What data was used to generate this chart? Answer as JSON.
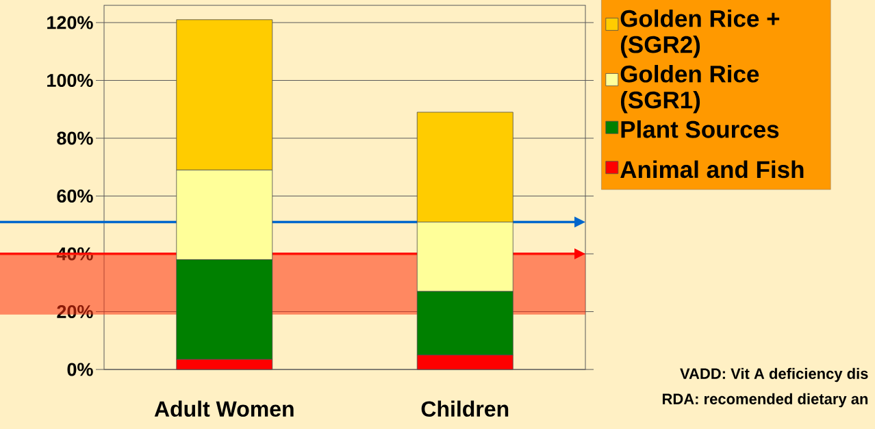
{
  "chart_data": {
    "type": "bar",
    "stacked": true,
    "categories": [
      "Adult Women",
      "Children"
    ],
    "series": [
      {
        "name": "Animal and Fish",
        "color": "#ff0000",
        "values": [
          3.5,
          5
        ]
      },
      {
        "name": "Plant Sources",
        "color": "#008000",
        "values": [
          34.5,
          22
        ]
      },
      {
        "name": "Golden Rice (SGR1)",
        "color": "#ffff99",
        "values": [
          31,
          24
        ]
      },
      {
        "name": "Golden Rice + (SGR2)",
        "color": "#ffcc00",
        "values": [
          52,
          38
        ]
      }
    ],
    "ylim": [
      0,
      126
    ],
    "yticks": [
      {
        "value": 0,
        "label": "0%"
      },
      {
        "value": 20,
        "label": "20%"
      },
      {
        "value": 40,
        "label": "40%"
      },
      {
        "value": 60,
        "label": "60%"
      },
      {
        "value": 80,
        "label": "80%"
      },
      {
        "value": 100,
        "label": "100%"
      },
      {
        "value": 120,
        "label": "120%"
      }
    ],
    "grid": "y",
    "legend": "right",
    "ref_lines": [
      {
        "axis": "y",
        "value": 51,
        "color": "#0066cc"
      },
      {
        "axis": "y",
        "value": 40,
        "color": "#ff0000"
      }
    ],
    "bands": [
      {
        "axis": "y",
        "from": 19,
        "to": 40,
        "color": "#ff3311"
      }
    ],
    "annotations": [
      "VADD: Vit A deficiency dis",
      "RDA: recomended dietary an"
    ]
  }
}
